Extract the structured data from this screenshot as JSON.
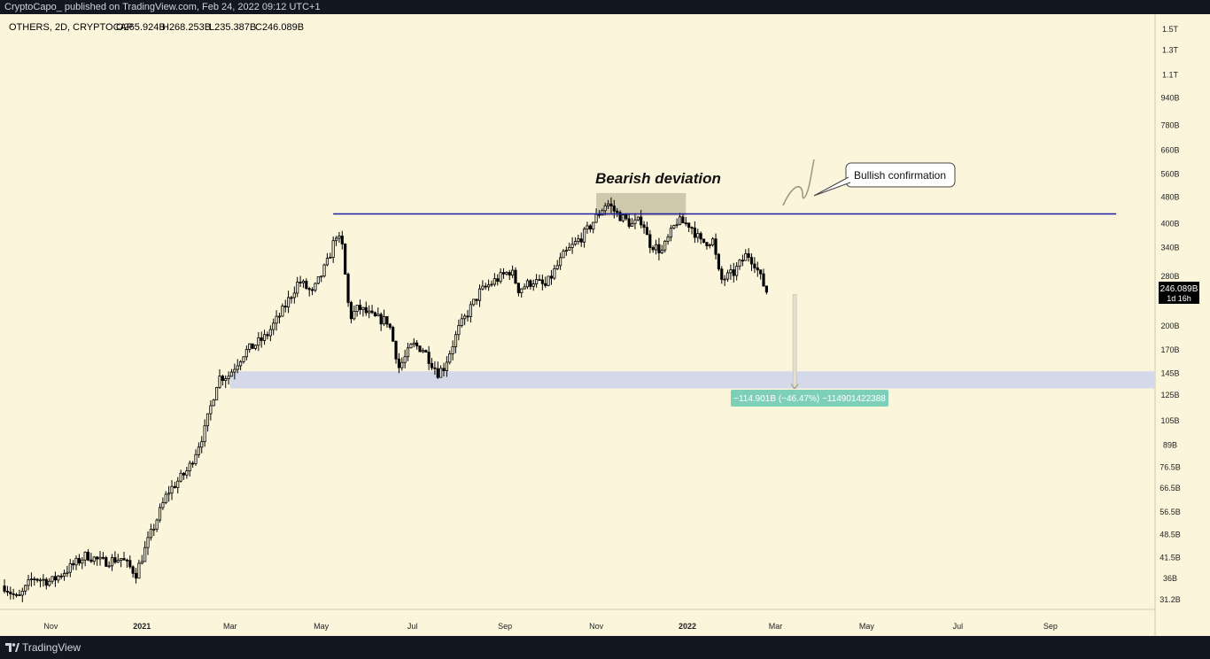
{
  "publish_line": "CryptoCapo_ published on TradingView.com, Feb 24, 2022 09:12 UTC+1",
  "footer": {
    "brand": "TradingView",
    "logo_icon": "tradingview-logo-icon"
  },
  "colors": {
    "background": "#fbf5dc",
    "candle": "#000000",
    "resistance_line": "#1e1ea0",
    "support_zone": "#d3d9e8",
    "deviation_box": "#c8bfa5",
    "measure_label_bg": "#7ecfb8",
    "price_label_bg": "#000000"
  },
  "chart_data": {
    "type": "candlestick",
    "symbol_legend": "OTHERS, 2D, CRYPTOCAP",
    "ohlc_legend": {
      "open": "O265.924B",
      "high": "H268.253B",
      "low": "L235.387B",
      "close": "C246.089B"
    },
    "y_scale": "log",
    "ylim": [
      29000000000,
      1650000000000
    ],
    "y_ticks": [
      {
        "label": "1.5T",
        "value": 1500000000000
      },
      {
        "label": "1.3T",
        "value": 1300000000000
      },
      {
        "label": "1.1T",
        "value": 1100000000000
      },
      {
        "label": "940B",
        "value": 940000000000
      },
      {
        "label": "780B",
        "value": 780000000000
      },
      {
        "label": "660B",
        "value": 660000000000
      },
      {
        "label": "560B",
        "value": 560000000000
      },
      {
        "label": "480B",
        "value": 480000000000
      },
      {
        "label": "400B",
        "value": 400000000000
      },
      {
        "label": "340B",
        "value": 340000000000
      },
      {
        "label": "280B",
        "value": 280000000000
      },
      {
        "label": "200B",
        "value": 200000000000
      },
      {
        "label": "170B",
        "value": 170000000000
      },
      {
        "label": "145B",
        "value": 145000000000
      },
      {
        "label": "125B",
        "value": 125000000000
      },
      {
        "label": "105B",
        "value": 105000000000
      },
      {
        "label": "89B",
        "value": 89000000000
      },
      {
        "label": "76.5B",
        "value": 76500000000
      },
      {
        "label": "66.5B",
        "value": 66500000000
      },
      {
        "label": "56.5B",
        "value": 56500000000
      },
      {
        "label": "48.5B",
        "value": 48500000000
      },
      {
        "label": "41.5B",
        "value": 41500000000
      },
      {
        "label": "36B",
        "value": 36000000000
      },
      {
        "label": "31.2B",
        "value": 31200000000
      }
    ],
    "xlim": [
      "2020-09-28",
      "2022-11-10"
    ],
    "x_ticks": [
      {
        "label": "Nov",
        "date": "2020-11-01"
      },
      {
        "label": "2021",
        "date": "2021-01-01"
      },
      {
        "label": "Mar",
        "date": "2021-03-01"
      },
      {
        "label": "May",
        "date": "2021-05-01"
      },
      {
        "label": "Jul",
        "date": "2021-07-01"
      },
      {
        "label": "Sep",
        "date": "2021-09-01"
      },
      {
        "label": "Nov",
        "date": "2021-11-01"
      },
      {
        "label": "2022",
        "date": "2022-01-01"
      },
      {
        "label": "Mar",
        "date": "2022-03-01"
      },
      {
        "label": "May",
        "date": "2022-05-01"
      },
      {
        "label": "Jul",
        "date": "2022-07-01"
      },
      {
        "label": "Sep",
        "date": "2022-09-01"
      }
    ],
    "price_path": [
      [
        "2020-10-01",
        34
      ],
      [
        "2020-10-10",
        31
      ],
      [
        "2020-10-20",
        36
      ],
      [
        "2020-11-01",
        35
      ],
      [
        "2020-11-12",
        38
      ],
      [
        "2020-11-25",
        42
      ],
      [
        "2020-12-05",
        40
      ],
      [
        "2020-12-18",
        41
      ],
      [
        "2020-12-28",
        37
      ],
      [
        "2021-01-05",
        46
      ],
      [
        "2021-01-18",
        64
      ],
      [
        "2021-02-01",
        75
      ],
      [
        "2021-02-12",
        98
      ],
      [
        "2021-02-21",
        140
      ],
      [
        "2021-02-28",
        142
      ],
      [
        "2021-03-10",
        165
      ],
      [
        "2021-03-25",
        185
      ],
      [
        "2021-04-05",
        220
      ],
      [
        "2021-04-16",
        270
      ],
      [
        "2021-04-25",
        248
      ],
      [
        "2021-05-05",
        305
      ],
      [
        "2021-05-11",
        370
      ],
      [
        "2021-05-15",
        340
      ],
      [
        "2021-05-20",
        210
      ],
      [
        "2021-05-26",
        225
      ],
      [
        "2021-06-05",
        210
      ],
      [
        "2021-06-15",
        205
      ],
      [
        "2021-06-22",
        150
      ],
      [
        "2021-06-26",
        160
      ],
      [
        "2021-07-01",
        175
      ],
      [
        "2021-07-08",
        170
      ],
      [
        "2021-07-18",
        145
      ],
      [
        "2021-07-22",
        150
      ],
      [
        "2021-08-01",
        195
      ],
      [
        "2021-08-15",
        250
      ],
      [
        "2021-08-25",
        270
      ],
      [
        "2021-09-05",
        290
      ],
      [
        "2021-09-10",
        255
      ],
      [
        "2021-09-20",
        270
      ],
      [
        "2021-09-28",
        260
      ],
      [
        "2021-10-10",
        320
      ],
      [
        "2021-10-25",
        375
      ],
      [
        "2021-11-08",
        460
      ],
      [
        "2021-11-15",
        425
      ],
      [
        "2021-11-25",
        395
      ],
      [
        "2021-12-02",
        410
      ],
      [
        "2021-12-06",
        350
      ],
      [
        "2021-12-15",
        330
      ],
      [
        "2021-12-25",
        405
      ],
      [
        "2022-01-03",
        395
      ],
      [
        "2022-01-10",
        350
      ],
      [
        "2022-01-18",
        355
      ],
      [
        "2022-01-23",
        270
      ],
      [
        "2022-02-01",
        285
      ],
      [
        "2022-02-10",
        325
      ],
      [
        "2022-02-15",
        305
      ],
      [
        "2022-02-19",
        275
      ],
      [
        "2022-02-24",
        246
      ]
    ],
    "price_path_units": "B (billions USD)",
    "last_price": {
      "label": "246.089B",
      "countdown": "1d 16h",
      "value": 246089000000
    },
    "resistance_line": {
      "value": 425000000000,
      "from": "2021-05-09",
      "to": "2022-10-15"
    },
    "support_zone": {
      "from": "2021-03-01",
      "to": "2022-11-10",
      "low": 130000000000,
      "high": 146000000000
    },
    "annotations": {
      "title": "Bearish deviation",
      "deviation_box": {
        "from": "2021-11-01",
        "to": "2021-12-31",
        "low": 420000000000,
        "high": 490000000000
      },
      "callout_text": "Bullish confirmation",
      "measure_label": "−114.901B (−46.47%) −114901422388",
      "measure": {
        "date": "2022-02-24",
        "from": 246000000000,
        "to": 130000000000
      }
    }
  }
}
